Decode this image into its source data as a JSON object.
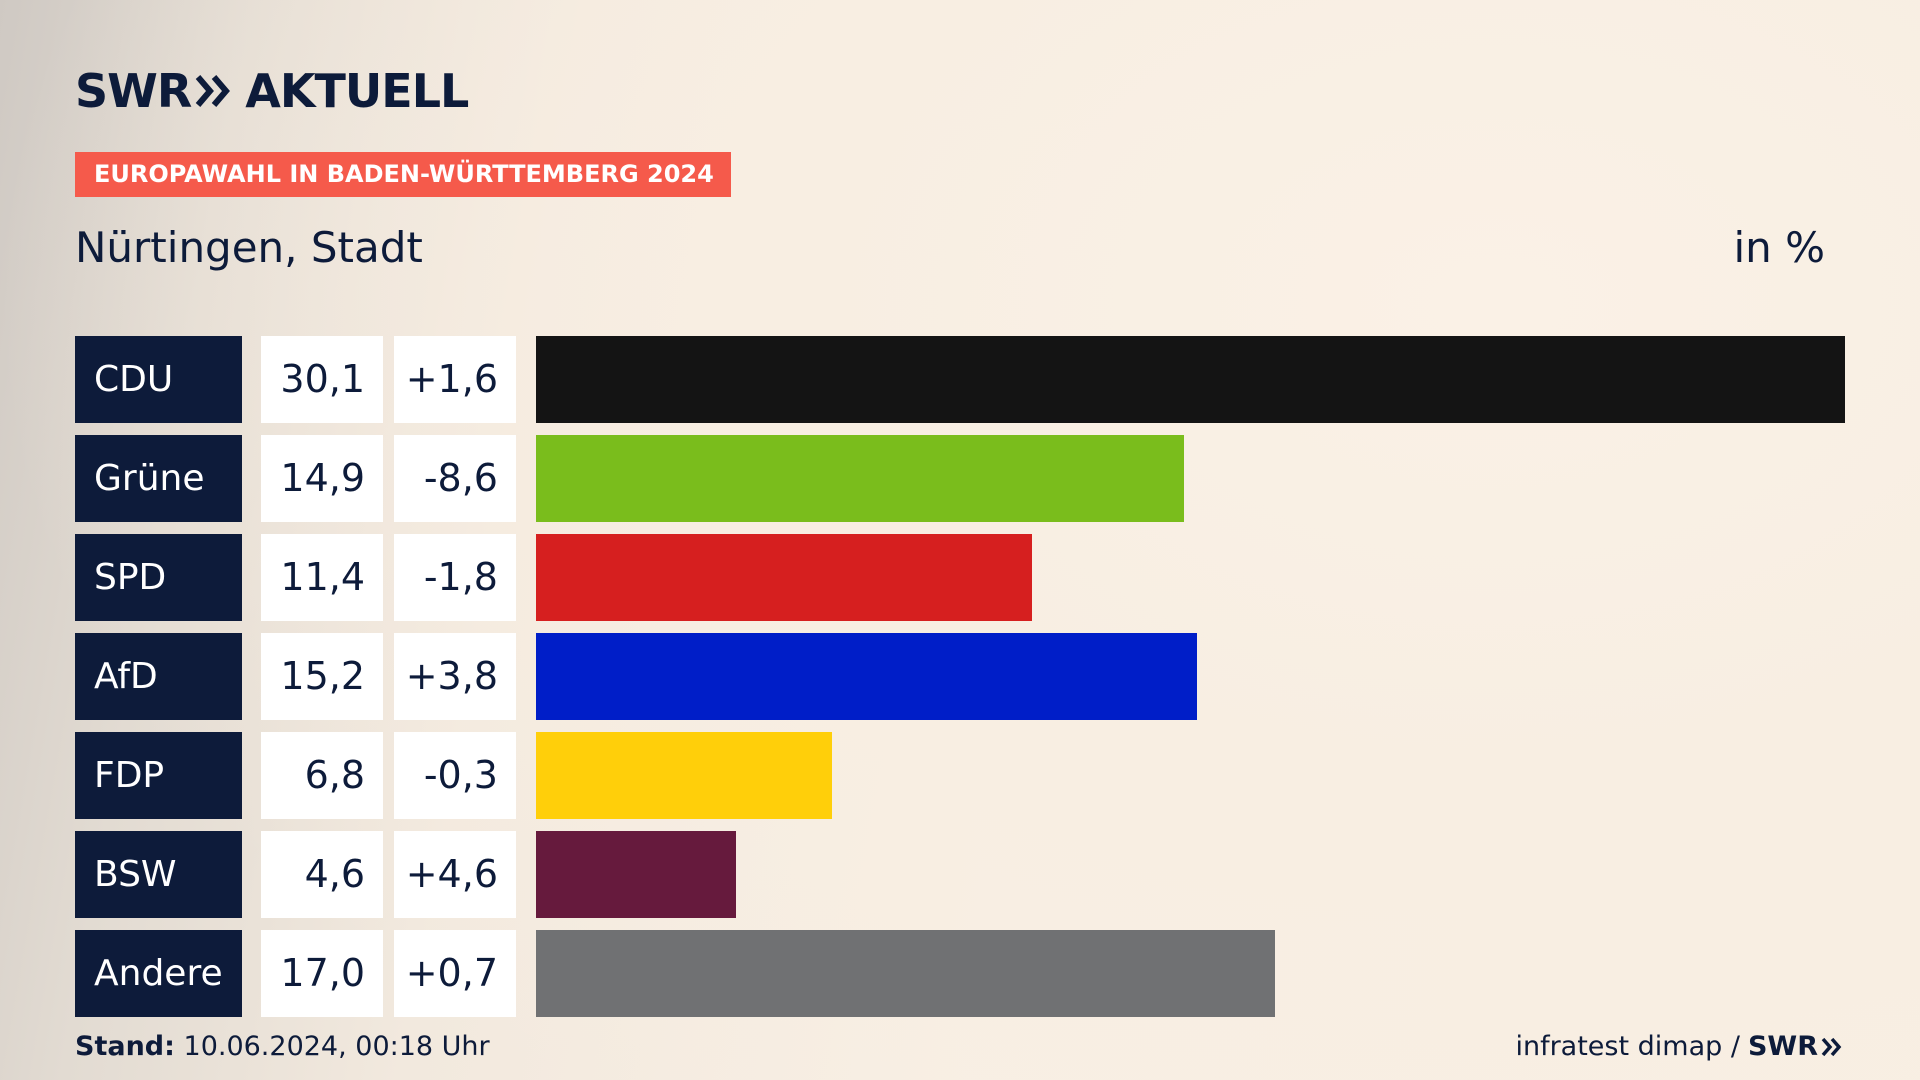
{
  "brand": {
    "logo_text_left": "SWR",
    "logo_text_right": "AKTUELL",
    "logo_arrow_icon": "double-chevron-right-icon"
  },
  "badge": "EUROPAWAHL IN BADEN-WÜRTTEMBERG 2024",
  "subtitle": "Nürtingen, Stadt",
  "unit": "in %",
  "footer": {
    "stand_label": "Stand:",
    "stand_value": "10.06.2024, 00:18 Uhr",
    "source": "infratest dimap /",
    "source_logo": "SWR"
  },
  "colors": {
    "navy": "#0d1b3a",
    "badge": "#f55a4b"
  },
  "chart_data": {
    "type": "bar",
    "orientation": "horizontal",
    "title": "Nürtingen, Stadt",
    "unit": "in %",
    "categories": [
      "CDU",
      "Grüne",
      "SPD",
      "AfD",
      "FDP",
      "BSW",
      "Andere"
    ],
    "values": [
      30.1,
      14.9,
      11.4,
      15.2,
      6.8,
      4.6,
      17.0
    ],
    "value_labels": [
      "30,1",
      "14,9",
      "11,4",
      "15,2",
      "6,8",
      "4,6",
      "17,0"
    ],
    "diff_labels": [
      "+1,6",
      "-8,6",
      "-1,8",
      "+3,8",
      "-0,3",
      "+4,6",
      "+0,7"
    ],
    "diffs": [
      1.6,
      -8.6,
      -1.8,
      3.8,
      -0.3,
      4.6,
      0.7
    ],
    "colors": [
      "#141414",
      "#7abd1c",
      "#d61f1f",
      "#001ec8",
      "#ffcf0a",
      "#661a3d",
      "#707173"
    ],
    "xlim": [
      0,
      30.1
    ],
    "grid": false,
    "legend": "none"
  }
}
